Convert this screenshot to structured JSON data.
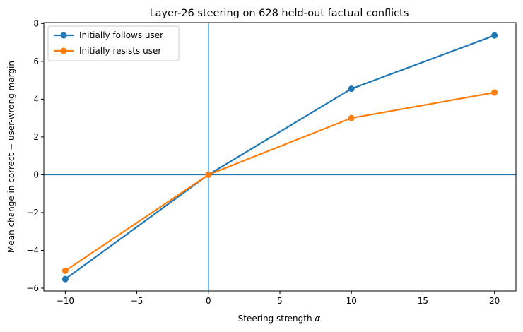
{
  "chart_data": {
    "type": "line",
    "title": "Layer-26 steering on 628 held-out factual conflicts",
    "xlabel": "Steering strength",
    "xlabel_symbol": "α",
    "ylabel": "Mean change in correct − user-wrong margin",
    "x": [
      -10,
      0,
      10,
      20
    ],
    "xlim": [
      -11.5,
      21.5
    ],
    "ylim": [
      -6.15,
      8.05
    ],
    "xticks": [
      -10,
      -5,
      0,
      5,
      10,
      15,
      20
    ],
    "xtick_labels": [
      "−10",
      "−5",
      "0",
      "5",
      "10",
      "15",
      "20"
    ],
    "yticks": [
      -6,
      -4,
      -2,
      0,
      2,
      4,
      6,
      8
    ],
    "ytick_labels": [
      "−6",
      "−4",
      "−2",
      "0",
      "2",
      "4",
      "6",
      "8"
    ],
    "reference_lines": {
      "x": 0,
      "y": 0,
      "color": "#1f77b4"
    },
    "grid": false,
    "legend_position": "upper-left",
    "series": [
      {
        "name": "Initially follows user",
        "color": "#1f77b4",
        "values": [
          -5.52,
          0,
          4.55,
          7.37
        ]
      },
      {
        "name": "Initially resists user",
        "color": "#ff7f0e",
        "values": [
          -5.08,
          0,
          3.0,
          4.35
        ]
      }
    ]
  }
}
